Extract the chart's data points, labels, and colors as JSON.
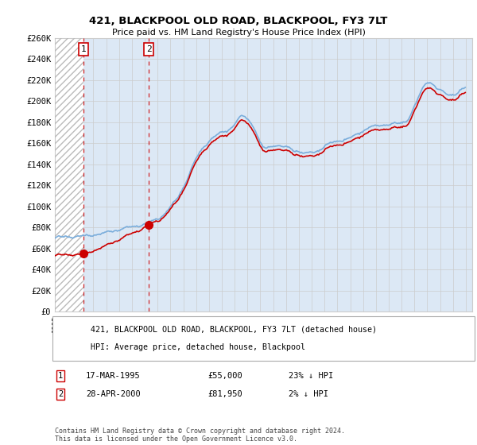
{
  "title": "421, BLACKPOOL OLD ROAD, BLACKPOOL, FY3 7LT",
  "subtitle": "Price paid vs. HM Land Registry's House Price Index (HPI)",
  "ylim": [
    0,
    260000
  ],
  "xlim_start": 1993.0,
  "xlim_end": 2025.5,
  "transaction1_date": 1995.21,
  "transaction1_price": 55000,
  "transaction2_date": 2000.32,
  "transaction2_price": 81950,
  "legend_line1": "421, BLACKPOOL OLD ROAD, BLACKPOOL, FY3 7LT (detached house)",
  "legend_line2": "HPI: Average price, detached house, Blackpool",
  "annotation1_date": "17-MAR-1995",
  "annotation1_price": "£55,000",
  "annotation1_pct": "23% ↓ HPI",
  "annotation2_date": "28-APR-2000",
  "annotation2_price": "£81,950",
  "annotation2_pct": "2% ↓ HPI",
  "footer": "Contains HM Land Registry data © Crown copyright and database right 2024.\nThis data is licensed under the Open Government Licence v3.0.",
  "hpi_color": "#7aaddb",
  "price_color": "#cc0000",
  "hatch_color": "#bbbbbb",
  "shade_color": "#dce8f5",
  "background_color": "#ffffff",
  "grid_color": "#cccccc"
}
